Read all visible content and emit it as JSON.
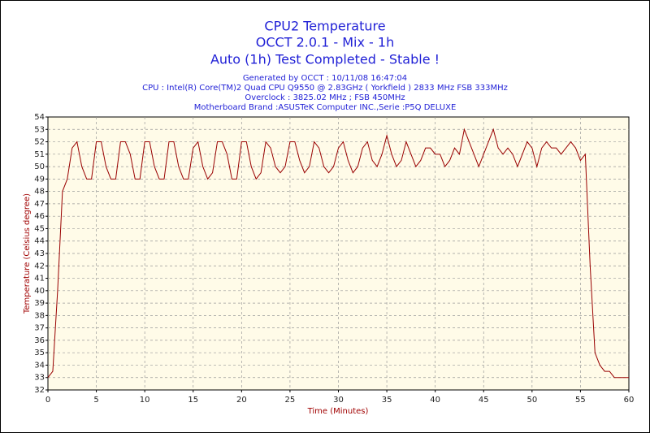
{
  "chart_data": {
    "type": "line",
    "title": "CPU2 Temperature",
    "subtitle": "OCCT 2.0.1 - Mix - 1h",
    "status": "Auto (1h) Test Completed - Stable !",
    "info": [
      "Generated by OCCT : 10/11/08 16:47:04",
      "CPU : Intel(R) Core(TM)2 Quad CPU Q9550 @ 2.83GHz ( Yorkfield ) 2833 MHz FSB 333MHz",
      "Overclock : 3825.02 MHz ; FSB 450MHz",
      "Motherboard Brand :ASUSTeK Computer INC.,Serie :P5Q DELUXE"
    ],
    "x_label": "Time (Minutes)",
    "y_label": "Temperature (Celsius degree)",
    "x": [
      0,
      0.5,
      1,
      1.5,
      2,
      2.5,
      3,
      3.5,
      4,
      4.5,
      5,
      5.5,
      6,
      6.5,
      7,
      7.5,
      8,
      8.5,
      9,
      9.5,
      10,
      10.5,
      11,
      11.5,
      12,
      12.5,
      13,
      13.5,
      14,
      14.5,
      15,
      15.5,
      16,
      16.5,
      17,
      17.5,
      18,
      18.5,
      19,
      19.5,
      20,
      20.5,
      21,
      21.5,
      22,
      22.5,
      23,
      23.5,
      24,
      24.5,
      25,
      25.5,
      26,
      26.5,
      27,
      27.5,
      28,
      28.5,
      29,
      29.5,
      30,
      30.5,
      31,
      31.5,
      32,
      32.5,
      33,
      33.5,
      34,
      34.5,
      35,
      35.5,
      36,
      36.5,
      37,
      37.5,
      38,
      38.5,
      39,
      39.5,
      40,
      40.5,
      41,
      41.5,
      42,
      42.5,
      43,
      43.5,
      44,
      44.5,
      45,
      45.5,
      46,
      46.5,
      47,
      47.5,
      48,
      48.5,
      49,
      49.5,
      50,
      50.5,
      51,
      51.5,
      52,
      52.5,
      53,
      53.5,
      54,
      54.5,
      55,
      55.5,
      56,
      56.5,
      57,
      57.5,
      58,
      58.5,
      59,
      59.5,
      60
    ],
    "series": [
      {
        "name": "CPU2",
        "color": "#990000",
        "values": [
          33,
          33.5,
          40,
          48,
          49,
          51.5,
          52,
          50,
          49,
          49,
          52,
          52,
          50,
          49,
          49,
          52,
          52,
          51,
          49,
          49,
          52,
          52,
          50,
          49,
          49,
          52,
          52,
          50,
          49,
          49,
          51.5,
          52,
          50,
          49,
          49.5,
          52,
          52,
          51,
          49,
          49,
          52,
          52,
          50,
          49,
          49.5,
          52,
          51.5,
          50,
          49.5,
          50,
          52,
          52,
          50.5,
          49.5,
          50,
          52,
          51.5,
          50,
          49.5,
          50,
          51.5,
          52,
          50.5,
          49.5,
          50,
          51.5,
          52,
          50.5,
          50,
          51,
          52.5,
          51,
          50,
          50.5,
          52,
          51,
          50,
          50.5,
          51.5,
          51.5,
          51,
          51,
          50,
          50.5,
          51.5,
          51,
          53,
          52,
          51,
          50,
          51,
          52,
          53,
          51.5,
          51,
          51.5,
          51,
          50,
          51,
          52,
          51.5,
          50,
          51.5,
          52,
          51.5,
          51.5,
          51,
          51.5,
          52,
          51.5,
          50.5,
          51,
          42,
          35,
          34,
          33.5,
          33.5,
          33,
          33,
          33,
          33
        ]
      }
    ],
    "xlim": [
      0,
      60
    ],
    "xticks": [
      0,
      5,
      10,
      15,
      20,
      25,
      30,
      35,
      40,
      45,
      50,
      55,
      60
    ],
    "ylim": [
      32,
      54
    ],
    "yticks": [
      32,
      33,
      34,
      35,
      36,
      37,
      38,
      39,
      40,
      41,
      42,
      43,
      44,
      45,
      46,
      47,
      48,
      49,
      50,
      51,
      52,
      53,
      54
    ],
    "grid": true
  }
}
